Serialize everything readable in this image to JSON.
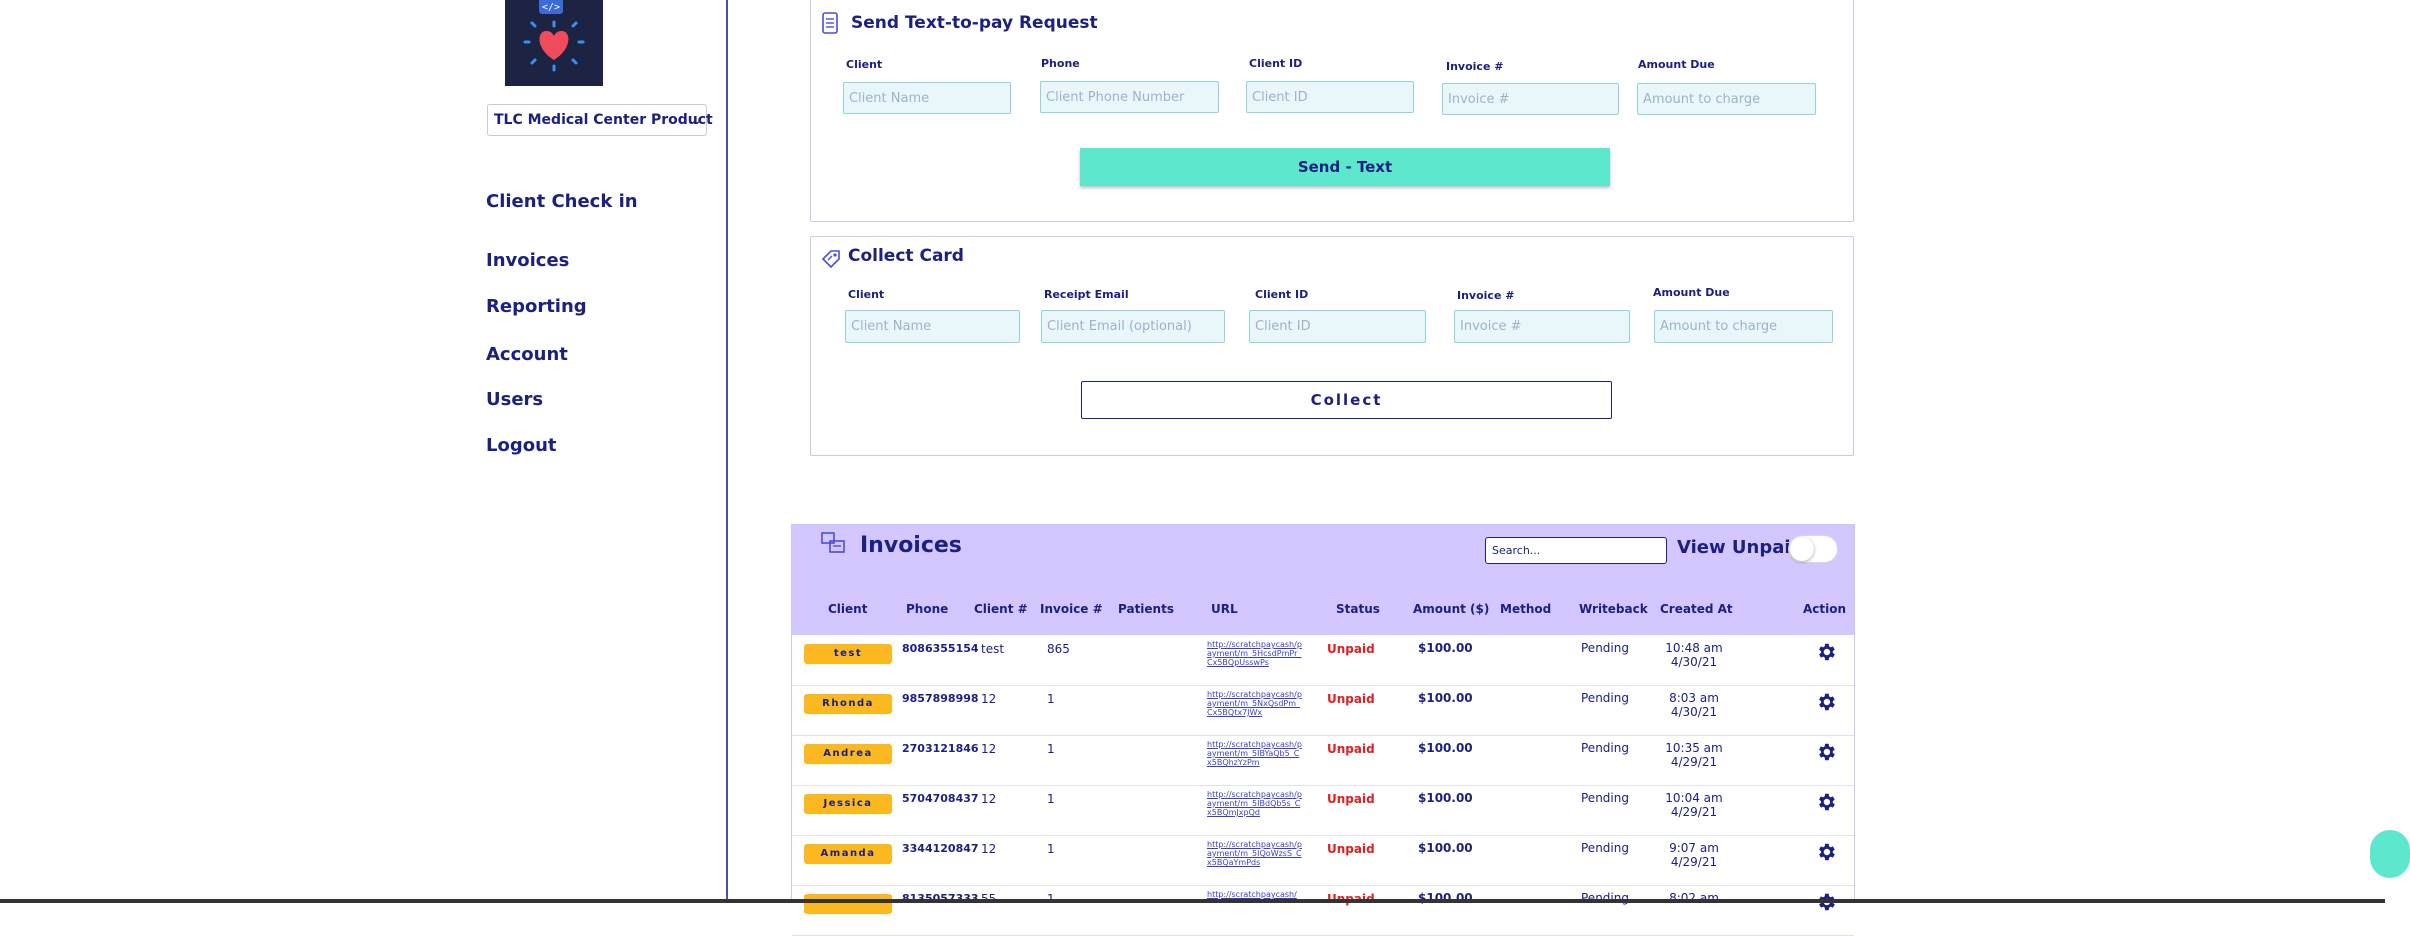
{
  "sidebar": {
    "org": "TLC Medical Center Product",
    "client_checkin": "Client Check in",
    "items": [
      {
        "label": "Invoices"
      },
      {
        "label": "Reporting"
      },
      {
        "label": "Account"
      },
      {
        "label": "Users"
      },
      {
        "label": "Logout"
      }
    ]
  },
  "text_to_pay": {
    "title": "Send Text-to-pay Request",
    "labels": {
      "client": "Client",
      "phone": "Phone",
      "client_id": "Client ID",
      "invoice": "Invoice #",
      "amount": "Amount Due"
    },
    "placeholders": {
      "client": "Client Name",
      "phone": "Client Phone Number",
      "client_id": "Client ID",
      "invoice": "Invoice #",
      "amount": "Amount to charge"
    },
    "button": "Send - Text"
  },
  "collect_card": {
    "title": "Collect Card",
    "labels": {
      "client": "Client",
      "email": "Receipt Email",
      "client_id": "Client ID",
      "invoice": "Invoice #",
      "amount": "Amount Due"
    },
    "placeholders": {
      "client": "Client Name",
      "email": "Client Email (optional)",
      "client_id": "Client ID",
      "invoice": "Invoice #",
      "amount": "Amount to charge"
    },
    "button": "Collect"
  },
  "invoices": {
    "title": "Invoices",
    "search_placeholder": "Search...",
    "view_unpaid": "View Unpaid",
    "columns": [
      "Client",
      "Phone",
      "Client #",
      "Invoice #",
      "Patients",
      "URL",
      "Status",
      "Amount ($)",
      "Method",
      "Writeback",
      "Created At",
      "Action"
    ],
    "rows": [
      {
        "client": "test",
        "phone": "8086355154",
        "client_no": "test",
        "invoice": "865",
        "url": "http://scratchpaycash/payment/m_5HcsdPmPr_Cx5BQpUsswPs",
        "status": "Unpaid",
        "amount": "$100.00",
        "writeback": "Pending",
        "time": "10:48 am",
        "date": "4/30/21"
      },
      {
        "client": "Rhonda",
        "phone": "9857898998",
        "client_no": "12",
        "invoice": "1",
        "url": "http://scratchpaycash/payment/m_5NxQsdPm_Cx5BQtx7JWx",
        "status": "Unpaid",
        "amount": "$100.00",
        "writeback": "Pending",
        "time": "8:03 am",
        "date": "4/30/21"
      },
      {
        "client": "Andrea",
        "phone": "2703121846",
        "client_no": "12",
        "invoice": "1",
        "url": "http://scratchpaycash/payment/m_5IBYaQb5_Cx5BQhzYzPm",
        "status": "Unpaid",
        "amount": "$100.00",
        "writeback": "Pending",
        "time": "10:35 am",
        "date": "4/29/21"
      },
      {
        "client": "Jessica",
        "phone": "5704708437",
        "client_no": "12",
        "invoice": "1",
        "url": "http://scratchpaycash/payment/m_5IBdQb5s_Cx5BQmJxpQd",
        "status": "Unpaid",
        "amount": "$100.00",
        "writeback": "Pending",
        "time": "10:04 am",
        "date": "4/29/21"
      },
      {
        "client": "Amanda",
        "phone": "3344120847",
        "client_no": "12",
        "invoice": "1",
        "url": "http://scratchpaycash/payment/m_5IQoWzsS_Cx5BQaYmPds",
        "status": "Unpaid",
        "amount": "$100.00",
        "writeback": "Pending",
        "time": "9:07 am",
        "date": "4/29/21"
      },
      {
        "client": "",
        "phone": "8135057333",
        "client_no": "55",
        "invoice": "1",
        "url": "http://scratchpaycash/",
        "status": "Unpaid",
        "amount": "$100.00",
        "writeback": "Pending",
        "time": "8:02 am",
        "date": ""
      }
    ]
  }
}
